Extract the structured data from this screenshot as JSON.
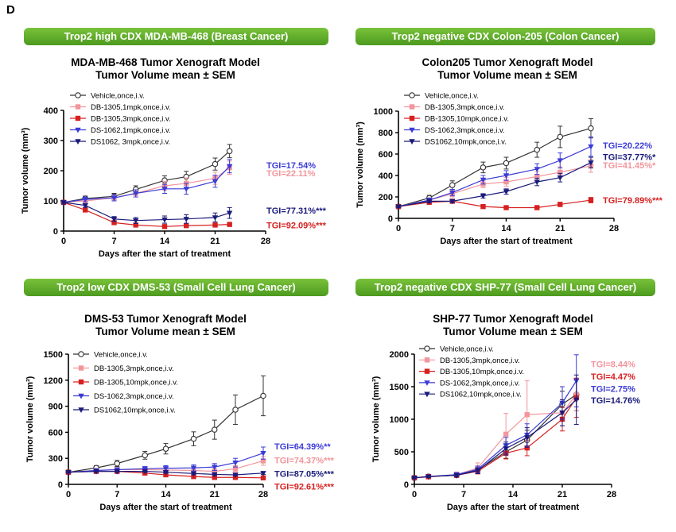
{
  "panel_label": "D",
  "banners": [
    "Trop2 high CDX MDA-MB-468 (Breast Cancer)",
    "Trop2 negative CDX Colon-205 (Colon Cancer)",
    "Trop2 low CDX DMS-53 (Small Cell Lung Cancer)",
    "Trop2 negative CDX SHP-77 (Small Cell Lung Cancer)"
  ],
  "colors": {
    "vehicle": "#333333",
    "db_low": "#f2959c",
    "db_high": "#d62020",
    "ds_low": "#3b3bd6",
    "ds_high": "#1a1a7a",
    "banner": "#5aa82a"
  },
  "chart_data": [
    {
      "type": "line",
      "title": [
        "MDA-MB-468 Tumor Xenograft Model",
        "Tumor Volume mean ± SEM"
      ],
      "xlabel": "Days after the start of treatment",
      "ylabel": "Tumor volume (mm³)",
      "xlim": [
        0,
        28
      ],
      "ylim": [
        0,
        400
      ],
      "xticks": [
        0,
        7,
        14,
        21,
        28
      ],
      "yticks": [
        0,
        100,
        200,
        300,
        400
      ],
      "x": [
        0,
        3,
        7,
        10,
        14,
        17,
        21,
        23
      ],
      "series": [
        {
          "name": "Vehicle,once,i.v.",
          "style": "vehicle",
          "values": [
            95,
            108,
            115,
            138,
            168,
            180,
            222,
            265
          ],
          "err": [
            5,
            8,
            10,
            12,
            15,
            18,
            20,
            22
          ]
        },
        {
          "name": "DB-1305,1mpk,once,i.v.",
          "style": "db_low",
          "values": [
            95,
            100,
            110,
            125,
            150,
            158,
            175,
            210
          ],
          "err": [
            5,
            8,
            10,
            12,
            15,
            18,
            20,
            22
          ]
        },
        {
          "name": "DB-1305,3mpk,once,i.v.",
          "style": "db_high",
          "values": [
            95,
            70,
            28,
            20,
            15,
            18,
            20,
            22
          ],
          "err": [
            3,
            5,
            4,
            3,
            3,
            3,
            3,
            3
          ]
        },
        {
          "name": "DS-1062,1mpk,once,i.v.",
          "style": "ds_low",
          "values": [
            95,
            105,
            110,
            125,
            140,
            140,
            165,
            215
          ],
          "err": [
            5,
            8,
            10,
            12,
            15,
            18,
            20,
            22
          ]
        },
        {
          "name": "DS1062, 3mpk,once,i.v.",
          "style": "ds_high",
          "values": [
            95,
            85,
            40,
            35,
            38,
            40,
            45,
            60
          ],
          "err": [
            5,
            6,
            8,
            10,
            12,
            14,
            15,
            18
          ]
        }
      ],
      "annotations": [
        {
          "text": "TGI=17.54%",
          "style": "ds_low",
          "y": 218
        },
        {
          "text": "TGI=22.11%",
          "style": "db_low",
          "y": 192
        },
        {
          "text": "TGI=77.31%***",
          "style": "ds_high",
          "y": 68
        },
        {
          "text": "TGI=92.09%***",
          "style": "db_high",
          "y": 20
        }
      ]
    },
    {
      "type": "line",
      "title": [
        "Colon205 Tumor Xenograft Model",
        "Tumor Volume mean ± SEM"
      ],
      "xlabel": "Days after the start of treatment",
      "ylabel": "Tumor volume (mm³)",
      "xlim": [
        0,
        28
      ],
      "ylim": [
        0,
        1000
      ],
      "xticks": [
        0,
        7,
        14,
        21,
        28
      ],
      "yticks": [
        0,
        200,
        400,
        600,
        800,
        1000
      ],
      "x": [
        0,
        4,
        7,
        11,
        14,
        18,
        21,
        25
      ],
      "series": [
        {
          "name": "Vehicle,once,i.v.",
          "style": "vehicle",
          "values": [
            110,
            190,
            310,
            475,
            515,
            640,
            760,
            840
          ],
          "err": [
            10,
            25,
            40,
            50,
            55,
            70,
            100,
            90
          ]
        },
        {
          "name": "DB-1305,3mpk,once,i.v.",
          "style": "db_low",
          "values": [
            110,
            170,
            230,
            320,
            340,
            390,
            430,
            490
          ],
          "err": [
            10,
            20,
            30,
            35,
            40,
            45,
            50,
            60
          ]
        },
        {
          "name": "DB-1305,10mpk,once,i.v.",
          "style": "db_high",
          "values": [
            110,
            150,
            160,
            110,
            100,
            100,
            130,
            170
          ],
          "err": [
            10,
            15,
            15,
            15,
            12,
            12,
            20,
            25
          ]
        },
        {
          "name": "DS-1062,3mpk,once,i.v.",
          "style": "ds_low",
          "values": [
            110,
            170,
            240,
            360,
            400,
            460,
            540,
            670
          ],
          "err": [
            10,
            20,
            30,
            40,
            45,
            50,
            70,
            90
          ]
        },
        {
          "name": "DS1062,10mpk,once,i.v.",
          "style": "ds_high",
          "values": [
            110,
            160,
            160,
            210,
            250,
            340,
            380,
            520
          ],
          "err": [
            10,
            15,
            15,
            20,
            25,
            35,
            40,
            50
          ]
        }
      ],
      "annotations": [
        {
          "text": "TGI=20.22%",
          "style": "ds_low",
          "y": 680
        },
        {
          "text": "TGI=37.77%*",
          "style": "ds_high",
          "y": 575
        },
        {
          "text": "TGI=41.45%*",
          "style": "db_low",
          "y": 495
        },
        {
          "text": "TGI=79.89%***",
          "style": "db_high",
          "y": 170
        }
      ]
    },
    {
      "type": "line",
      "title": [
        "DMS-53 Tumor Xenograft Model",
        "Tumor Volume mean ± SEM"
      ],
      "xlabel": "Days after the start of treatment",
      "ylabel": "Tumor volume (mm³)",
      "xlim": [
        0,
        28
      ],
      "ylim": [
        0,
        1500
      ],
      "xticks": [
        0,
        7,
        14,
        21,
        28
      ],
      "yticks": [
        0,
        300,
        600,
        900,
        1200,
        1500
      ],
      "x": [
        0,
        4,
        7,
        11,
        14,
        18,
        21,
        24,
        28
      ],
      "series": [
        {
          "name": "Vehicle,once,i.v.",
          "style": "vehicle",
          "values": [
            140,
            190,
            240,
            335,
            410,
            525,
            630,
            860,
            1020
          ],
          "err": [
            15,
            25,
            35,
            45,
            60,
            80,
            110,
            170,
            230
          ]
        },
        {
          "name": "DB-1305,3mpk,once,i.v.",
          "style": "db_low",
          "values": [
            140,
            160,
            170,
            170,
            165,
            160,
            150,
            180,
            270
          ],
          "err": [
            10,
            15,
            15,
            20,
            20,
            25,
            30,
            35,
            50
          ]
        },
        {
          "name": "DB-1305,10mpk,once,i.v.",
          "style": "db_high",
          "values": [
            140,
            150,
            150,
            130,
            110,
            90,
            80,
            80,
            75
          ],
          "err": [
            10,
            12,
            12,
            12,
            10,
            10,
            10,
            10,
            10
          ]
        },
        {
          "name": "DS-1062,3mpk,once,i.v.",
          "style": "ds_low",
          "values": [
            140,
            160,
            170,
            180,
            185,
            190,
            200,
            250,
            360
          ],
          "err": [
            10,
            15,
            20,
            25,
            30,
            35,
            40,
            50,
            70
          ]
        },
        {
          "name": "DS1062,10mpk,once,i.v.",
          "style": "ds_high",
          "values": [
            140,
            150,
            150,
            150,
            140,
            125,
            115,
            110,
            130
          ],
          "err": [
            10,
            12,
            12,
            12,
            12,
            12,
            12,
            12,
            15
          ]
        }
      ],
      "annotations": [
        {
          "text": "TGI=64.39%**",
          "style": "ds_low",
          "y": 440
        },
        {
          "text": "TGI=74.37%***",
          "style": "db_low",
          "y": 280
        },
        {
          "text": "TGI=87.05%***",
          "style": "ds_high",
          "y": 125
        },
        {
          "text": "TGI=92.61%***",
          "style": "db_high",
          "y": -25
        }
      ]
    },
    {
      "type": "line",
      "title": [
        "SHP-77 Tumor Xenograft Model",
        "Tumor Volume mean ± SEM"
      ],
      "xlabel": "Days after the start of treatment",
      "ylabel": "Tumor volume (mm³)",
      "xlim": [
        0,
        28
      ],
      "ylim": [
        0,
        2000
      ],
      "xticks": [
        0,
        7,
        14,
        21,
        28
      ],
      "yticks": [
        0,
        500,
        1000,
        1500,
        2000
      ],
      "x": [
        0,
        2,
        6,
        9,
        13,
        16,
        21,
        23
      ],
      "series": [
        {
          "name": "Vehicle,once,i.v.",
          "style": "vehicle",
          "values": [
            100,
            120,
            140,
            220,
            500,
            680,
            1230,
            1380
          ],
          "err": [
            10,
            15,
            30,
            50,
            100,
            150,
            200,
            250
          ]
        },
        {
          "name": "DB-1305,3mpk,once,i.v.",
          "style": "db_low",
          "values": [
            100,
            110,
            150,
            250,
            770,
            1070,
            1100,
            1380
          ],
          "err": [
            10,
            20,
            40,
            80,
            320,
            520,
            200,
            250
          ]
        },
        {
          "name": "DB-1305,10mpk,once,i.v.",
          "style": "db_high",
          "values": [
            100,
            120,
            140,
            200,
            480,
            560,
            1000,
            1330
          ],
          "err": [
            10,
            15,
            25,
            40,
            90,
            120,
            180,
            300
          ]
        },
        {
          "name": "DS-1062,3mpk,once,i.v.",
          "style": "ds_low",
          "values": [
            100,
            120,
            150,
            230,
            600,
            760,
            1250,
            1590
          ],
          "err": [
            10,
            15,
            30,
            50,
            120,
            170,
            250,
            400
          ]
        },
        {
          "name": "DS1062,10mpk,once,i.v.",
          "style": "ds_high",
          "values": [
            100,
            120,
            140,
            210,
            550,
            720,
            1100,
            1300
          ],
          "err": [
            10,
            15,
            25,
            45,
            100,
            150,
            200,
            380
          ]
        }
      ],
      "annotations": [
        {
          "text": "TGI=8.44%",
          "style": "db_low",
          "y": 1850
        },
        {
          "text": "TGI=4.47%",
          "style": "db_high",
          "y": 1660
        },
        {
          "text": "TGI=2.75%",
          "style": "ds_low",
          "y": 1470
        },
        {
          "text": "TGI=14.76%",
          "style": "ds_high",
          "y": 1290
        }
      ]
    }
  ]
}
